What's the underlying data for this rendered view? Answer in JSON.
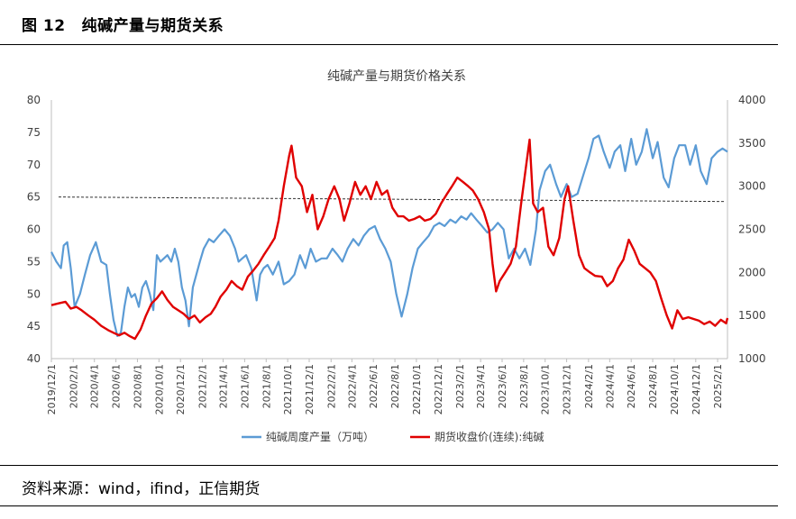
{
  "figure": {
    "number": "图 12",
    "title": "纯碱产量与期货关系",
    "source": "资料来源：wind，ifind，正信期货"
  },
  "colors": {
    "series_output": "#5B9BD5",
    "series_futures": "#E00000",
    "reference_line": "#333333"
  },
  "chart_data": {
    "type": "line",
    "title": "纯碱产量与期货价格关系",
    "y_left": {
      "min": 40,
      "max": 80,
      "step": 5,
      "ticks": [
        "80",
        "75",
        "70",
        "65",
        "60",
        "55",
        "50",
        "45",
        "40"
      ]
    },
    "y_right": {
      "min": 1000,
      "max": 4000,
      "step": 500,
      "ticks": [
        "4000",
        "3500",
        "3000",
        "2500",
        "2000",
        "1500",
        "1000"
      ]
    },
    "x_range": [
      "2019-12-01",
      "2025-03-01"
    ],
    "x_ticks": [
      "2019/12/1",
      "2020/2/1",
      "2020/4/1",
      "2020/6/1",
      "2020/8/1",
      "2020/10/1",
      "2020/12/1",
      "2021/2/1",
      "2021/4/1",
      "2021/6/1",
      "2021/8/1",
      "2021/10/1",
      "2021/12/1",
      "2022/2/1",
      "2022/4/1",
      "2022/6/1",
      "2022/8/1",
      "2022/10/1",
      "2022/12/1",
      "2023/2/1",
      "2023/4/1",
      "2023/6/1",
      "2023/8/1",
      "2023/10/1",
      "2023/12/1",
      "2024/2/1",
      "2024/4/1",
      "2024/6/1",
      "2024/8/1",
      "2024/10/1",
      "2024/12/1",
      "2025/2/1"
    ],
    "reference_line": {
      "axis": "left",
      "from": 65,
      "to": 64.3
    },
    "grid": false,
    "legend_position": "bottom",
    "series": [
      {
        "name": "纯碱周度产量（万吨）",
        "axis": "left",
        "points": [
          [
            "2019-12-01",
            56.5
          ],
          [
            "2019-12-15",
            55
          ],
          [
            "2019-12-28",
            54
          ],
          [
            "2020-01-05",
            57.5
          ],
          [
            "2020-01-15",
            58
          ],
          [
            "2020-01-25",
            54
          ],
          [
            "2020-02-05",
            48
          ],
          [
            "2020-02-20",
            50
          ],
          [
            "2020-03-05",
            53
          ],
          [
            "2020-03-20",
            56
          ],
          [
            "2020-04-05",
            58
          ],
          [
            "2020-04-20",
            55
          ],
          [
            "2020-05-05",
            54.5
          ],
          [
            "2020-05-15",
            50
          ],
          [
            "2020-05-25",
            46
          ],
          [
            "2020-06-05",
            43.5
          ],
          [
            "2020-06-15",
            44
          ],
          [
            "2020-06-25",
            48
          ],
          [
            "2020-07-05",
            51
          ],
          [
            "2020-07-15",
            49.5
          ],
          [
            "2020-07-25",
            50
          ],
          [
            "2020-08-05",
            48
          ],
          [
            "2020-08-15",
            51
          ],
          [
            "2020-08-25",
            52
          ],
          [
            "2020-09-05",
            50
          ],
          [
            "2020-09-15",
            47.5
          ],
          [
            "2020-09-25",
            56
          ],
          [
            "2020-10-05",
            55
          ],
          [
            "2020-10-15",
            55.5
          ],
          [
            "2020-10-25",
            56
          ],
          [
            "2020-11-05",
            55
          ],
          [
            "2020-11-15",
            57
          ],
          [
            "2020-11-25",
            55
          ],
          [
            "2020-12-05",
            51
          ],
          [
            "2020-12-15",
            49
          ],
          [
            "2020-12-25",
            45
          ],
          [
            "2021-01-05",
            51
          ],
          [
            "2021-01-15",
            53
          ],
          [
            "2021-01-25",
            55
          ],
          [
            "2021-02-05",
            57
          ],
          [
            "2021-02-20",
            58.5
          ],
          [
            "2021-03-05",
            58
          ],
          [
            "2021-03-20",
            59
          ],
          [
            "2021-04-05",
            60
          ],
          [
            "2021-04-20",
            59
          ],
          [
            "2021-05-05",
            57
          ],
          [
            "2021-05-15",
            55
          ],
          [
            "2021-05-25",
            55.5
          ],
          [
            "2021-06-05",
            56
          ],
          [
            "2021-06-20",
            54
          ],
          [
            "2021-07-05",
            49
          ],
          [
            "2021-07-15",
            53
          ],
          [
            "2021-07-25",
            54
          ],
          [
            "2021-08-05",
            54.5
          ],
          [
            "2021-08-20",
            53
          ],
          [
            "2021-09-05",
            55
          ],
          [
            "2021-09-20",
            51.5
          ],
          [
            "2021-10-05",
            52
          ],
          [
            "2021-10-20",
            53
          ],
          [
            "2021-11-05",
            56
          ],
          [
            "2021-11-20",
            54
          ],
          [
            "2021-12-05",
            57
          ],
          [
            "2021-12-20",
            55
          ],
          [
            "2022-01-05",
            55.5
          ],
          [
            "2022-01-20",
            55.5
          ],
          [
            "2022-02-05",
            57
          ],
          [
            "2022-02-20",
            56
          ],
          [
            "2022-03-05",
            55
          ],
          [
            "2022-03-20",
            57
          ],
          [
            "2022-04-05",
            58.5
          ],
          [
            "2022-04-20",
            57.5
          ],
          [
            "2022-05-05",
            59
          ],
          [
            "2022-05-20",
            60
          ],
          [
            "2022-06-05",
            60.5
          ],
          [
            "2022-06-20",
            58.5
          ],
          [
            "2022-07-05",
            57
          ],
          [
            "2022-07-20",
            55
          ],
          [
            "2022-08-05",
            50
          ],
          [
            "2022-08-20",
            46.5
          ],
          [
            "2022-09-05",
            50
          ],
          [
            "2022-09-20",
            54
          ],
          [
            "2022-10-05",
            57
          ],
          [
            "2022-10-20",
            58
          ],
          [
            "2022-11-05",
            59
          ],
          [
            "2022-11-20",
            60.5
          ],
          [
            "2022-12-05",
            61
          ],
          [
            "2022-12-20",
            60.5
          ],
          [
            "2023-01-05",
            61.5
          ],
          [
            "2023-01-20",
            61
          ],
          [
            "2023-02-05",
            62
          ],
          [
            "2023-02-20",
            61.5
          ],
          [
            "2023-03-05",
            62.5
          ],
          [
            "2023-03-20",
            61.5
          ],
          [
            "2023-04-05",
            60.5
          ],
          [
            "2023-04-20",
            59.5
          ],
          [
            "2023-05-05",
            60
          ],
          [
            "2023-05-20",
            61
          ],
          [
            "2023-06-05",
            60
          ],
          [
            "2023-06-20",
            55.5
          ],
          [
            "2023-07-05",
            57
          ],
          [
            "2023-07-20",
            55.5
          ],
          [
            "2023-08-05",
            57
          ],
          [
            "2023-08-20",
            54.5
          ],
          [
            "2023-09-05",
            60
          ],
          [
            "2023-09-15",
            66
          ],
          [
            "2023-10-01",
            69
          ],
          [
            "2023-10-15",
            70
          ],
          [
            "2023-11-01",
            67
          ],
          [
            "2023-11-15",
            65
          ],
          [
            "2023-12-01",
            67
          ],
          [
            "2023-12-15",
            65
          ],
          [
            "2024-01-01",
            65.5
          ],
          [
            "2024-01-15",
            68
          ],
          [
            "2024-02-01",
            71
          ],
          [
            "2024-02-15",
            74
          ],
          [
            "2024-03-01",
            74.5
          ],
          [
            "2024-03-15",
            72
          ],
          [
            "2024-04-01",
            69.5
          ],
          [
            "2024-04-15",
            72
          ],
          [
            "2024-05-01",
            73
          ],
          [
            "2024-05-15",
            69
          ],
          [
            "2024-06-01",
            74
          ],
          [
            "2024-06-15",
            70
          ],
          [
            "2024-07-01",
            72
          ],
          [
            "2024-07-15",
            75.5
          ],
          [
            "2024-08-01",
            71
          ],
          [
            "2024-08-15",
            73.5
          ],
          [
            "2024-09-01",
            68
          ],
          [
            "2024-09-15",
            66.5
          ],
          [
            "2024-10-01",
            71
          ],
          [
            "2024-10-15",
            73
          ],
          [
            "2024-11-01",
            73
          ],
          [
            "2024-11-15",
            70
          ],
          [
            "2024-12-01",
            73
          ],
          [
            "2024-12-15",
            69
          ],
          [
            "2025-01-01",
            67
          ],
          [
            "2025-01-15",
            71
          ],
          [
            "2025-02-01",
            72
          ],
          [
            "2025-02-15",
            72.5
          ],
          [
            "2025-03-01",
            72
          ]
        ]
      },
      {
        "name": "期货收盘价(连续):纯碱",
        "axis": "right",
        "points": [
          [
            "2019-12-01",
            1620
          ],
          [
            "2019-12-20",
            1640
          ],
          [
            "2020-01-10",
            1660
          ],
          [
            "2020-01-25",
            1580
          ],
          [
            "2020-02-10",
            1600
          ],
          [
            "2020-02-25",
            1560
          ],
          [
            "2020-03-15",
            1500
          ],
          [
            "2020-04-01",
            1450
          ],
          [
            "2020-04-20",
            1380
          ],
          [
            "2020-05-10",
            1330
          ],
          [
            "2020-05-25",
            1300
          ],
          [
            "2020-06-10",
            1270
          ],
          [
            "2020-06-25",
            1300
          ],
          [
            "2020-07-10",
            1260
          ],
          [
            "2020-07-25",
            1230
          ],
          [
            "2020-08-10",
            1340
          ],
          [
            "2020-08-25",
            1500
          ],
          [
            "2020-09-10",
            1640
          ],
          [
            "2020-09-25",
            1700
          ],
          [
            "2020-10-10",
            1780
          ],
          [
            "2020-10-25",
            1680
          ],
          [
            "2020-11-10",
            1600
          ],
          [
            "2020-11-25",
            1560
          ],
          [
            "2020-12-10",
            1520
          ],
          [
            "2020-12-25",
            1460
          ],
          [
            "2021-01-10",
            1500
          ],
          [
            "2021-01-25",
            1420
          ],
          [
            "2021-02-10",
            1480
          ],
          [
            "2021-02-25",
            1520
          ],
          [
            "2021-03-10",
            1600
          ],
          [
            "2021-03-25",
            1720
          ],
          [
            "2021-04-10",
            1800
          ],
          [
            "2021-04-25",
            1900
          ],
          [
            "2021-05-10",
            1840
          ],
          [
            "2021-05-25",
            1800
          ],
          [
            "2021-06-10",
            1950
          ],
          [
            "2021-06-25",
            2020
          ],
          [
            "2021-07-10",
            2100
          ],
          [
            "2021-07-25",
            2200
          ],
          [
            "2021-08-10",
            2300
          ],
          [
            "2021-08-25",
            2400
          ],
          [
            "2021-09-05",
            2600
          ],
          [
            "2021-09-20",
            3000
          ],
          [
            "2021-10-05",
            3350
          ],
          [
            "2021-10-12",
            3470
          ],
          [
            "2021-10-25",
            3100
          ],
          [
            "2021-11-10",
            3000
          ],
          [
            "2021-11-25",
            2700
          ],
          [
            "2021-12-10",
            2900
          ],
          [
            "2021-12-25",
            2500
          ],
          [
            "2022-01-10",
            2650
          ],
          [
            "2022-01-25",
            2850
          ],
          [
            "2022-02-10",
            3000
          ],
          [
            "2022-02-25",
            2850
          ],
          [
            "2022-03-10",
            2600
          ],
          [
            "2022-03-25",
            2800
          ],
          [
            "2022-04-10",
            3050
          ],
          [
            "2022-04-25",
            2900
          ],
          [
            "2022-05-10",
            3000
          ],
          [
            "2022-05-25",
            2850
          ],
          [
            "2022-06-10",
            3050
          ],
          [
            "2022-06-25",
            2900
          ],
          [
            "2022-07-10",
            2950
          ],
          [
            "2022-07-25",
            2750
          ],
          [
            "2022-08-10",
            2650
          ],
          [
            "2022-08-25",
            2650
          ],
          [
            "2022-09-10",
            2600
          ],
          [
            "2022-09-25",
            2620
          ],
          [
            "2022-10-10",
            2650
          ],
          [
            "2022-10-25",
            2600
          ],
          [
            "2022-11-10",
            2620
          ],
          [
            "2022-11-25",
            2680
          ],
          [
            "2022-12-10",
            2800
          ],
          [
            "2022-12-25",
            2900
          ],
          [
            "2023-01-10",
            3000
          ],
          [
            "2023-01-25",
            3100
          ],
          [
            "2023-02-10",
            3050
          ],
          [
            "2023-02-25",
            3000
          ],
          [
            "2023-03-10",
            2950
          ],
          [
            "2023-03-25",
            2850
          ],
          [
            "2023-04-10",
            2700
          ],
          [
            "2023-04-25",
            2500
          ],
          [
            "2023-05-05",
            2100
          ],
          [
            "2023-05-15",
            1780
          ],
          [
            "2023-05-25",
            1900
          ],
          [
            "2023-06-10",
            2000
          ],
          [
            "2023-06-25",
            2100
          ],
          [
            "2023-07-10",
            2300
          ],
          [
            "2023-07-25",
            2800
          ],
          [
            "2023-08-10",
            3300
          ],
          [
            "2023-08-18",
            3540
          ],
          [
            "2023-08-28",
            2800
          ],
          [
            "2023-09-10",
            2700
          ],
          [
            "2023-09-25",
            2750
          ],
          [
            "2023-10-10",
            2300
          ],
          [
            "2023-10-25",
            2200
          ],
          [
            "2023-11-10",
            2400
          ],
          [
            "2023-11-25",
            2850
          ],
          [
            "2023-12-05",
            3000
          ],
          [
            "2023-12-20",
            2600
          ],
          [
            "2024-01-05",
            2200
          ],
          [
            "2024-01-20",
            2050
          ],
          [
            "2024-02-05",
            2000
          ],
          [
            "2024-02-20",
            1960
          ],
          [
            "2024-03-10",
            1950
          ],
          [
            "2024-03-25",
            1840
          ],
          [
            "2024-04-10",
            1900
          ],
          [
            "2024-04-25",
            2050
          ],
          [
            "2024-05-10",
            2150
          ],
          [
            "2024-05-25",
            2380
          ],
          [
            "2024-06-10",
            2250
          ],
          [
            "2024-06-25",
            2100
          ],
          [
            "2024-07-10",
            2050
          ],
          [
            "2024-07-25",
            2000
          ],
          [
            "2024-08-10",
            1900
          ],
          [
            "2024-08-25",
            1700
          ],
          [
            "2024-09-10",
            1500
          ],
          [
            "2024-09-25",
            1350
          ],
          [
            "2024-10-10",
            1560
          ],
          [
            "2024-10-25",
            1460
          ],
          [
            "2024-11-10",
            1480
          ],
          [
            "2024-11-25",
            1460
          ],
          [
            "2024-12-10",
            1440
          ],
          [
            "2024-12-25",
            1400
          ],
          [
            "2025-01-10",
            1430
          ],
          [
            "2025-01-25",
            1380
          ],
          [
            "2025-02-10",
            1450
          ],
          [
            "2025-02-25",
            1410
          ],
          [
            "2025-03-01",
            1470
          ]
        ]
      }
    ]
  }
}
